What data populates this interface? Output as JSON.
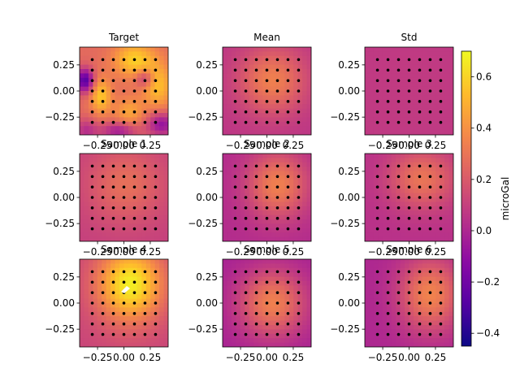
{
  "chart_data": {
    "type": "heatmap",
    "colormap": "plasma",
    "colorbar": {
      "label": "microGal",
      "range": [
        -0.45,
        0.7
      ],
      "ticks": [
        -0.4,
        -0.2,
        0.0,
        0.2,
        0.4,
        0.6
      ],
      "tick_labels": [
        "−0.4",
        "−0.2",
        "0.0",
        "0.2",
        "0.4",
        "0.6"
      ]
    },
    "axes": {
      "xlim": [
        -0.42,
        0.42
      ],
      "ylim": [
        -0.42,
        0.42
      ],
      "xticks": [
        -0.25,
        0.0,
        0.25
      ],
      "xtick_labels": [
        "−0.25",
        "0.00",
        "0.25"
      ],
      "yticks": [
        0.25,
        0.0,
        -0.25
      ],
      "ytick_labels": [
        "0.25",
        "0.00",
        "−0.25"
      ]
    },
    "station_grid": {
      "x": [
        -0.3,
        -0.2,
        -0.1,
        0.0,
        0.1,
        0.2,
        0.3
      ],
      "y": [
        0.3,
        0.2,
        0.1,
        0.0,
        -0.1,
        -0.2,
        -0.3
      ]
    },
    "panels": [
      {
        "title": "Target",
        "kind": "target"
      },
      {
        "title": "Mean",
        "kind": "mean"
      },
      {
        "title": "Std",
        "kind": "std"
      },
      {
        "title": "Sample 1",
        "kind": "sample1"
      },
      {
        "title": "Sample 2",
        "kind": "sample2"
      },
      {
        "title": "Sample 3",
        "kind": "sample3"
      },
      {
        "title": "Sample 4",
        "kind": "sample4"
      },
      {
        "title": "Sample 5",
        "kind": "sample5"
      },
      {
        "title": "Sample 6",
        "kind": "sample6"
      }
    ]
  }
}
